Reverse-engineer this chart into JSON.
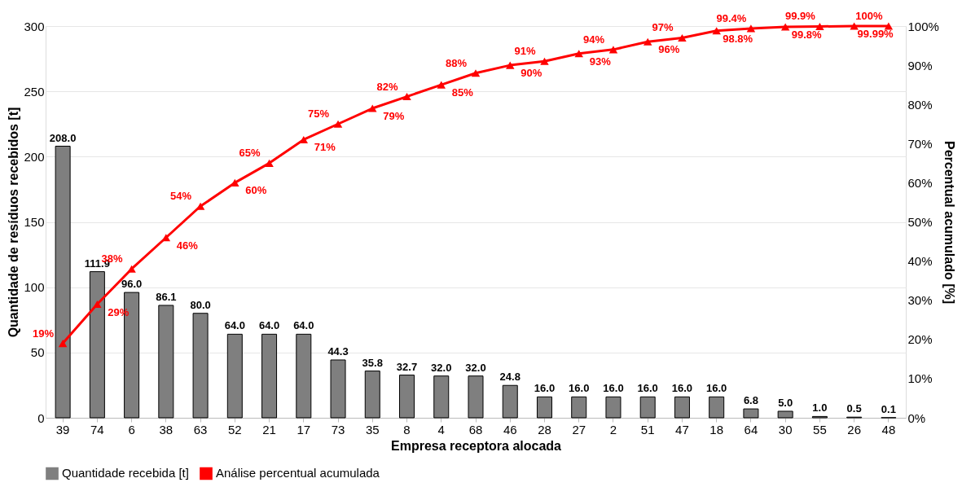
{
  "chart_data": {
    "type": "bar",
    "xlabel": "Empresa receptora alocada",
    "ylabel": "Quantidade de resíduos recebidos [t]",
    "y2label": "Percentual acumulado [%]",
    "categories": [
      "39",
      "74",
      "6",
      "38",
      "63",
      "52",
      "21",
      "17",
      "73",
      "35",
      "8",
      "4",
      "68",
      "46",
      "28",
      "27",
      "2",
      "51",
      "47",
      "18",
      "64",
      "30",
      "55",
      "26",
      "48"
    ],
    "series": [
      {
        "name": "Quantidade recebida [t]",
        "color": "#7f7f7f",
        "values": [
          208.0,
          111.9,
          96.0,
          86.1,
          80.0,
          64.0,
          64.0,
          64.0,
          44.3,
          35.8,
          32.7,
          32.0,
          32.0,
          24.8,
          16.0,
          16.0,
          16.0,
          16.0,
          16.0,
          16.0,
          6.8,
          5.0,
          1.0,
          0.5,
          0.1
        ],
        "value_labels": [
          "208.0",
          "111.9",
          "96.0",
          "86.1",
          "80.0",
          "64.0",
          "64.0",
          "64.0",
          "44.3",
          "35.8",
          "32.7",
          "32.0",
          "32.0",
          "24.8",
          "16.0",
          "16.0",
          "16.0",
          "16.0",
          "16.0",
          "16.0",
          "6.8",
          "5.0",
          "1.0",
          "0.5",
          "0.1"
        ]
      },
      {
        "name": "Análise percentual acumulada",
        "type": "line",
        "axis": "y2",
        "color": "#ff0000",
        "marker": "triangle",
        "values": [
          19,
          29,
          38,
          46,
          54,
          60,
          65,
          71,
          75,
          79,
          82,
          85,
          88,
          90,
          91,
          93,
          94,
          96,
          97,
          98.8,
          99.4,
          99.8,
          99.9,
          99.99,
          100
        ],
        "value_labels": [
          "19%",
          "29%",
          "38%",
          "46%",
          "54%",
          "60%",
          "65%",
          "71%",
          "75%",
          "79%",
          "82%",
          "85%",
          "88%",
          "90%",
          "91%",
          "93%",
          "94%",
          "96%",
          "97%",
          "98.8%",
          "99.4%",
          "99.8%",
          "99.9%",
          "99.99%",
          "100%"
        ]
      }
    ],
    "ylim": [
      0,
      300
    ],
    "yticks": [
      0,
      50,
      100,
      150,
      200,
      250,
      300
    ],
    "y2lim": [
      0,
      100
    ],
    "y2ticks": [
      {
        "value": 0,
        "label": "0%"
      },
      {
        "value": 10,
        "label": "10%"
      },
      {
        "value": 20,
        "label": "20%"
      },
      {
        "value": 30,
        "label": "30%"
      },
      {
        "value": 40,
        "label": "40%"
      },
      {
        "value": 50,
        "label": "50%"
      },
      {
        "value": 60,
        "label": "60%"
      },
      {
        "value": 70,
        "label": "70%"
      },
      {
        "value": 80,
        "label": "80%"
      },
      {
        "value": 90,
        "label": "90%"
      },
      {
        "value": 100,
        "label": "100%"
      }
    ],
    "grid": "y",
    "legend": "bottom"
  }
}
